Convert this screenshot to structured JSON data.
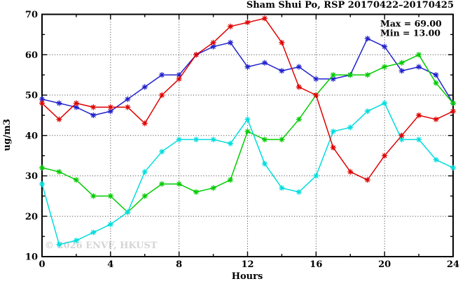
{
  "title": "Sham Shui Po, RSP 20170422–20170425",
  "annotations": {
    "max_label": "Max = 69.00",
    "min_label": "Min = 13.00"
  },
  "watermark": "© 2026 ENVF, HKUST",
  "chart_data": {
    "type": "line",
    "title": "Sham Shui Po, RSP 20170422–20170425",
    "xlabel": "Hours",
    "ylabel": "ug/m3",
    "xlim": [
      0,
      24
    ],
    "ylim": [
      10,
      70
    ],
    "x_major_ticks": [
      0,
      4,
      8,
      12,
      16,
      20,
      24
    ],
    "x_minor_ticks": [
      2,
      6,
      10,
      14,
      18,
      22
    ],
    "y_major_ticks": [
      10,
      20,
      30,
      40,
      50,
      60,
      70
    ],
    "y_minor_ticks": [
      15,
      25,
      35,
      45,
      55,
      65
    ],
    "grid_x": [
      4,
      8,
      12,
      16,
      20
    ],
    "grid_y": [
      20,
      30,
      40,
      50,
      60
    ],
    "legend": "none",
    "x": [
      0,
      1,
      2,
      3,
      4,
      5,
      6,
      7,
      8,
      9,
      10,
      11,
      12,
      13,
      14,
      15,
      16,
      17,
      18,
      19,
      20,
      21,
      22,
      23,
      24
    ],
    "series": [
      {
        "name": "series-blue",
        "color": "#2222cc",
        "values": [
          49,
          48,
          47,
          45,
          46,
          49,
          52,
          55,
          55,
          60,
          62,
          63,
          57,
          58,
          56,
          57,
          54,
          54,
          55,
          64,
          62,
          56,
          57,
          55,
          48
        ]
      },
      {
        "name": "series-green",
        "color": "#00cc00",
        "values": [
          32,
          31,
          29,
          25,
          25,
          21,
          25,
          28,
          28,
          26,
          27,
          29,
          41,
          39,
          39,
          44,
          50,
          55,
          55,
          55,
          57,
          58,
          60,
          53,
          48
        ]
      },
      {
        "name": "series-cyan",
        "color": "#00dddd",
        "values": [
          28,
          13,
          14,
          16,
          18,
          21,
          31,
          36,
          39,
          39,
          39,
          38,
          44,
          33,
          27,
          26,
          30,
          41,
          42,
          46,
          48,
          39,
          39,
          34,
          32
        ]
      },
      {
        "name": "series-red",
        "color": "#e00000",
        "values": [
          48,
          44,
          48,
          47,
          47,
          47,
          43,
          50,
          54,
          60,
          63,
          67,
          68,
          69,
          63,
          52,
          50,
          37,
          31,
          29,
          35,
          40,
          45,
          44,
          46
        ]
      }
    ]
  }
}
